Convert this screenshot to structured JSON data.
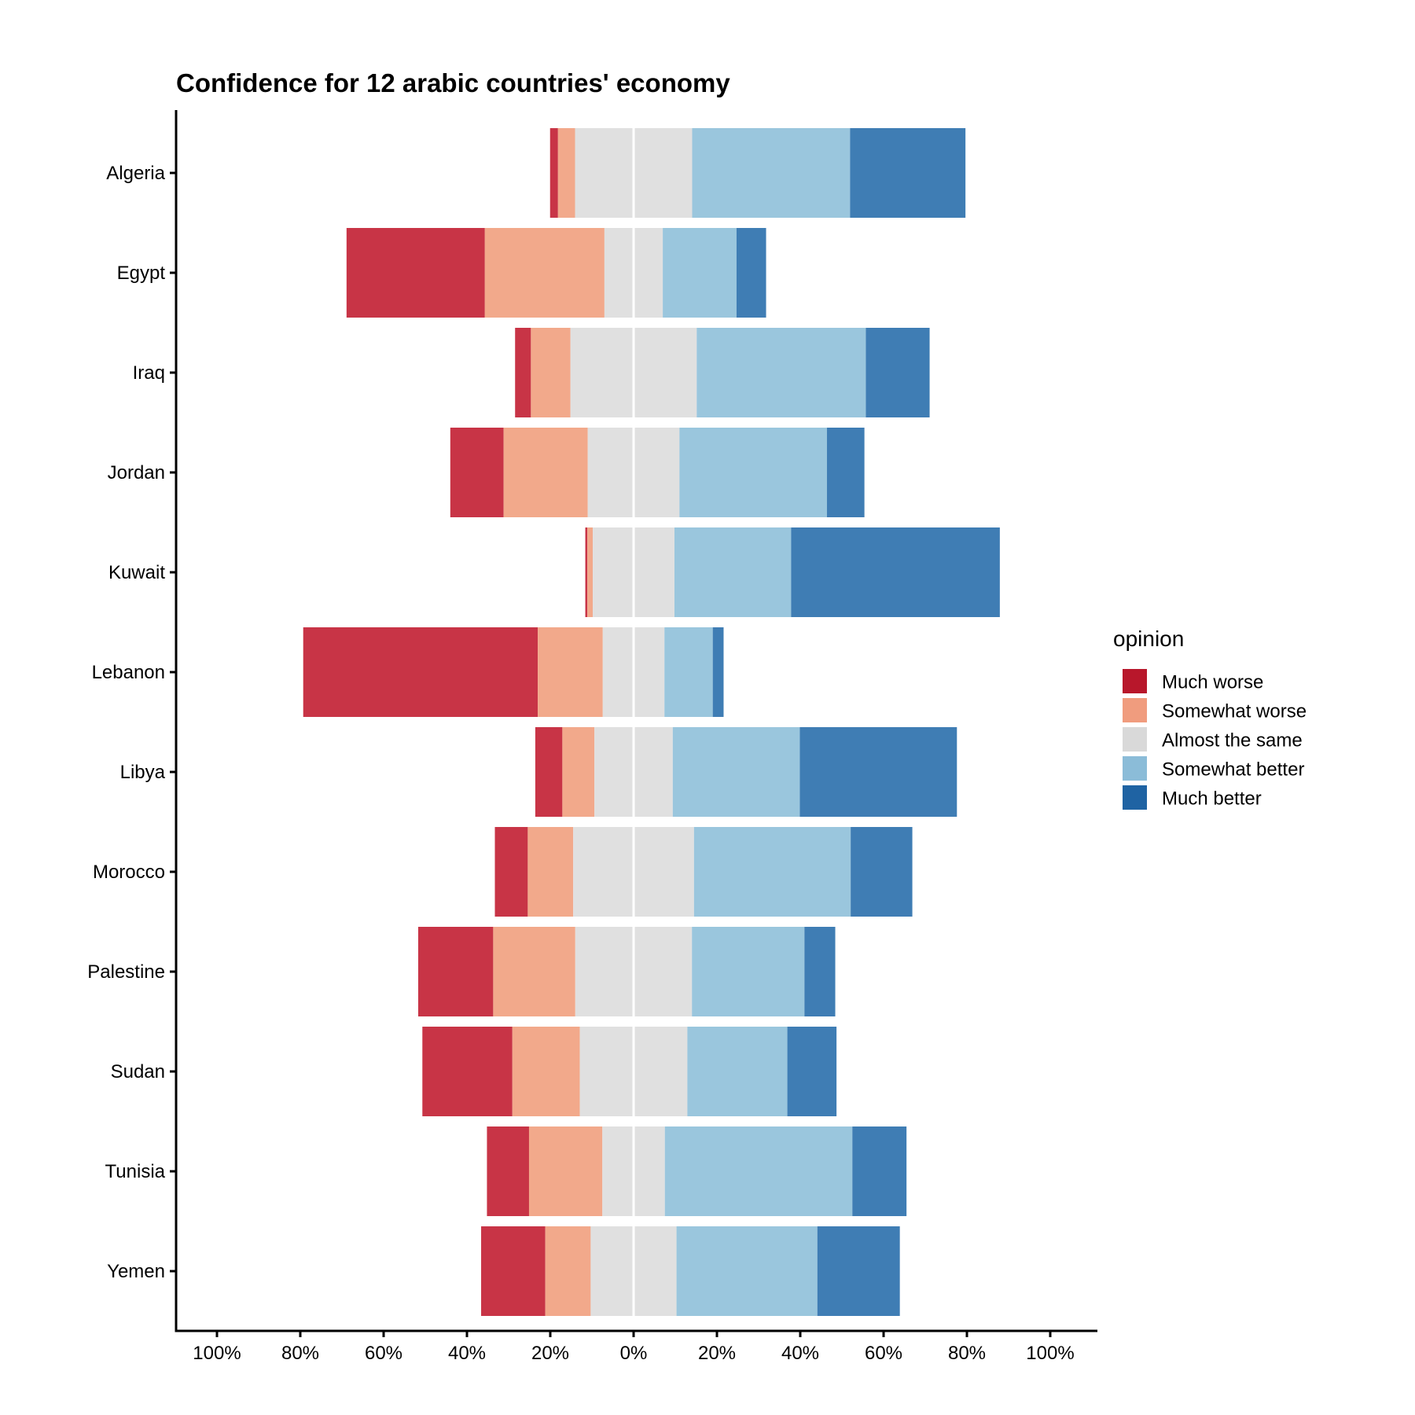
{
  "chart_data": {
    "type": "bar",
    "orientation": "horizontal",
    "stacking": "diverging",
    "title": "Confidence for 12 arabic countries' economy",
    "xlabel": "",
    "ylabel": "",
    "xlim": [
      -100,
      100
    ],
    "x_tick_values": [
      -100,
      -80,
      -60,
      -40,
      -20,
      0,
      20,
      40,
      60,
      80,
      100
    ],
    "x_tick_labels": [
      "100%",
      "80%",
      "60%",
      "40%",
      "20%",
      "0%",
      "20%",
      "40%",
      "60%",
      "80%",
      "100%"
    ],
    "grid": false,
    "legend_position": "right",
    "legend_title": "opinion",
    "categories": [
      "Algeria",
      "Egypt",
      "Iraq",
      "Jordan",
      "Kuwait",
      "Lebanon",
      "Libya",
      "Morocco",
      "Palestine",
      "Sudan",
      "Tunisia",
      "Yemen"
    ],
    "series": [
      {
        "name": "Much worse",
        "color": "#c83446",
        "bar_color": "#c83446",
        "legend_color": "#b8172b",
        "values": [
          1.9,
          33.2,
          3.8,
          12.8,
          0.5,
          56.3,
          6.5,
          7.9,
          18.0,
          21.6,
          10.1,
          15.4
        ]
      },
      {
        "name": "Somewhat worse",
        "color": "#f2a98b",
        "bar_color": "#f2a98b",
        "legend_color": "#f09c7e",
        "values": [
          4.1,
          28.7,
          9.5,
          20.2,
          1.3,
          15.6,
          7.7,
          10.9,
          19.7,
          16.2,
          17.6,
          10.9
        ]
      },
      {
        "name": "Almost the same",
        "color": "#e0e0e0",
        "bar_color": "#e0e0e0",
        "legend_color": "#d9d9d9",
        "values": [
          28.1,
          14.0,
          30.3,
          22.0,
          19.6,
          14.8,
          18.8,
          29.0,
          28.0,
          25.8,
          15.0,
          20.6
        ]
      },
      {
        "name": "Somewhat better",
        "color": "#9ac6dd",
        "bar_color": "#9ac6dd",
        "legend_color": "#8bbcd8",
        "values": [
          37.9,
          17.7,
          40.6,
          35.4,
          28.0,
          11.6,
          30.5,
          37.6,
          27.0,
          24.0,
          45.0,
          33.8
        ]
      },
      {
        "name": "Much better",
        "color": "#3f7db4",
        "bar_color": "#3f7db4",
        "legend_color": "#1f63a3",
        "values": [
          27.7,
          7.1,
          15.3,
          9.0,
          50.1,
          2.6,
          37.7,
          14.8,
          7.4,
          11.8,
          13.0,
          19.8
        ]
      }
    ]
  }
}
